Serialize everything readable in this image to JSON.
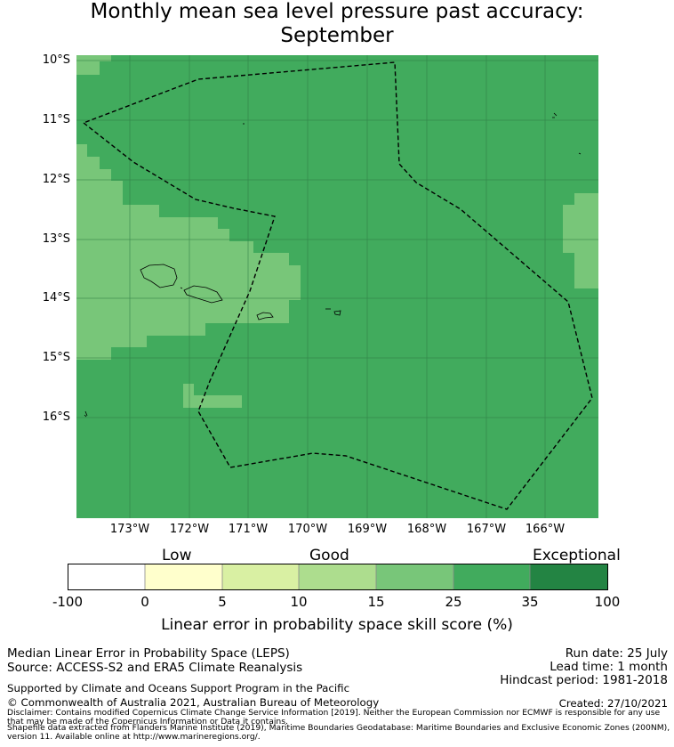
{
  "title": {
    "line1": "Monthly mean sea level pressure past accuracy:",
    "line2": "September"
  },
  "map": {
    "lat_labels": [
      "10°S",
      "11°S",
      "12°S",
      "13°S",
      "14°S",
      "15°S",
      "16°S"
    ],
    "lon_labels": [
      "173°W",
      "172°W",
      "171°W",
      "170°W",
      "169°W",
      "168°W",
      "167°W",
      "166°W"
    ],
    "colors": {
      "good_25_35": "#41ab5d",
      "good_15_25": "#78c679",
      "grid": "#2f7d45",
      "boundary": "#000000"
    }
  },
  "colorbar": {
    "categories": [
      "Low",
      "Good",
      "Exceptional"
    ],
    "ticks": [
      "-100",
      "0",
      "5",
      "10",
      "15",
      "25",
      "35",
      "100"
    ],
    "colors": [
      "#ffffff",
      "#ffffcc",
      "#d9f0a3",
      "#addd8e",
      "#78c679",
      "#41ab5d",
      "#238443"
    ],
    "label": "Linear error in probability space skill score (%)"
  },
  "footer": {
    "left1": "Median Linear Error in Probability Space (LEPS)",
    "left2": "Source: ACCESS-S2 and ERA5 Climate Reanalysis",
    "right1": "Run date: 25 July",
    "right2": "Lead time: 1 month",
    "right3": "Hindcast period: 1981-2018",
    "support": "Supported by Climate and Oceans Support Program in the Pacific",
    "copyright": "© Commonwealth of Australia 2021, Australian Bureau of Meteorology",
    "created": "Created: 27/10/2021",
    "disclaimer1": "Disclaimer: Contains modified Copernicus Climate Change Service Information [2019]. Neither the European Commission nor ECMWF is responsible for any use",
    "disclaimer2": "that may be made of the Copernicus Information or Data it contains.",
    "shapefile1": "Shapefile data extracted from Flanders Marine Institute (2019), Maritime Boundaries Geodatabase: Maritime Boundaries and Exclusive Economic Zones (200NM),",
    "shapefile2": "version 11. Available online at http://www.marineregions.org/."
  }
}
